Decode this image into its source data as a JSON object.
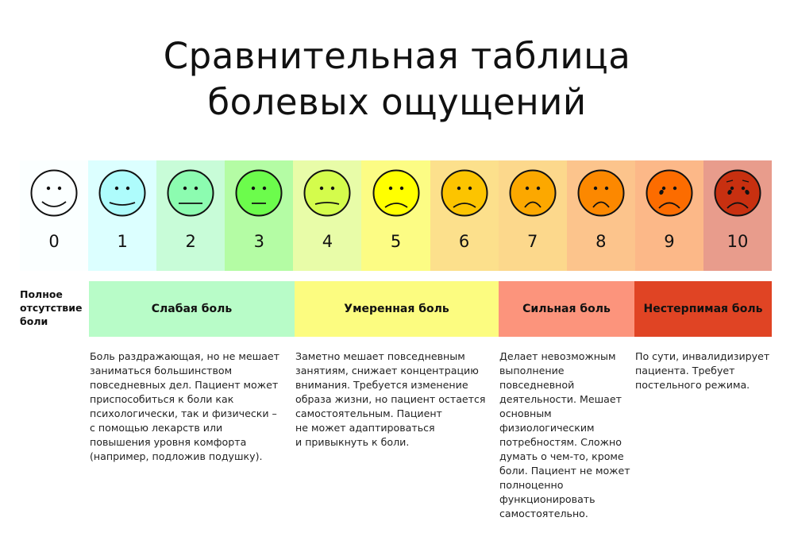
{
  "title_line1": "Сравнительная таблица",
  "title_line2": "болевых ощущений",
  "scale": [
    {
      "value": "0",
      "bg": "#fbffff",
      "face": "#fbffff",
      "expression": "smile"
    },
    {
      "value": "1",
      "bg": "#dcffff",
      "face": "#aefcfc",
      "expression": "slight-smile"
    },
    {
      "value": "2",
      "bg": "#c8fcd8",
      "face": "#8cfcb0",
      "expression": "neutral"
    },
    {
      "value": "3",
      "bg": "#b4fca4",
      "face": "#6cfc4c",
      "expression": "neutral-short"
    },
    {
      "value": "4",
      "bg": "#e8fca8",
      "face": "#d4fc4c",
      "expression": "slight-frown"
    },
    {
      "value": "5",
      "bg": "#fcfc84",
      "face": "#ffff00",
      "expression": "frown"
    },
    {
      "value": "6",
      "bg": "#fce08c",
      "face": "#fcc400",
      "expression": "frown"
    },
    {
      "value": "7",
      "bg": "#fcd88c",
      "face": "#fca800",
      "expression": "deep-frown"
    },
    {
      "value": "8",
      "bg": "#fcc48c",
      "face": "#fc8800",
      "expression": "deep-frown"
    },
    {
      "value": "9",
      "bg": "#fcb888",
      "face": "#fc6c00",
      "expression": "frown-tear"
    },
    {
      "value": "10",
      "bg": "#e89c8c",
      "face": "#c83010",
      "expression": "crying"
    }
  ],
  "no_pain_label": [
    "Полное",
    "отсутствие",
    "боли"
  ],
  "categories": [
    {
      "label": "Слабая боль",
      "color": "#b8fcc8",
      "description": [
        "Боль раздражающая, но не мешает",
        "заниматься большинством",
        "повседневных дел. Пациент может",
        "приспособиться к боли как",
        "психологически, так и физически –",
        "с помощью лекарств или",
        "повышения уровня комфорта",
        "(например, подложив подушку)."
      ]
    },
    {
      "label": "Умеренная боль",
      "color": "#fcfc80",
      "description": [
        "Заметно мешает повседневным",
        "занятиям, снижает концентрацию",
        "внимания. Требуется изменение",
        "образа жизни, но пациент остается",
        "самостоятельным. Пациент",
        "не может адаптироваться",
        "и привыкнуть к боли."
      ]
    },
    {
      "label": "Сильная боль",
      "color": "#fc947c",
      "description": [
        "Делает невозможным",
        "выполнение",
        "повседневной",
        "деятельности. Мешает",
        "основным",
        "физиологическим",
        "потребностям. Сложно",
        "думать о чем-то, кроме",
        "боли. Пациент не может",
        "полноценно",
        "функционировать",
        "самостоятельно."
      ]
    },
    {
      "label": "Нестерпимая боль",
      "color": "#e04424",
      "description": [
        "По сути, инвалидизирует",
        "пациента. Требует",
        "постельного режима."
      ]
    }
  ]
}
